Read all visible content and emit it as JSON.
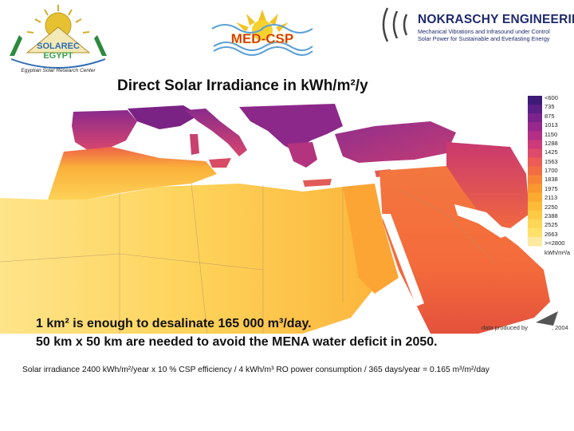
{
  "header": {
    "solarec": {
      "name": "SOLAREC",
      "country": "EGYPT",
      "tagline": "Egyptian Solar Research Center"
    },
    "medcsp": {
      "name": "MED-CSP"
    },
    "nokraschy": {
      "name": "NOKRASCHY ENGINEERING",
      "line1": "Mechanical Vibrations and Infrasound under Control",
      "line2": "Solar Power for Sustainable and Everlasting Energy"
    }
  },
  "map": {
    "title": "Direct Solar Irradiance in kWh/m²/y",
    "credit": "data produced by",
    "credit_year": ", 2004",
    "legend": {
      "labels": [
        "<600",
        "735",
        "875",
        "1013",
        "1150",
        "1288",
        "1425",
        "1563",
        "1700",
        "1838",
        "1975",
        "2113",
        "2250",
        "2388",
        "2525",
        "2663",
        ">=2800"
      ],
      "unit": "kWh/m²/a",
      "colors": [
        "#3d1a78",
        "#5b1f86",
        "#7a238c",
        "#98288b",
        "#b32f86",
        "#cc3a7a",
        "#de4a69",
        "#ea5c55",
        "#f26e42",
        "#f78337",
        "#fa9830",
        "#fbaa30",
        "#fcbb38",
        "#fdca46",
        "#fed658",
        "#fee06b",
        "#fee9a0"
      ]
    }
  },
  "message": {
    "line1": "1 km² is enough to desalinate 165 000 m³/day.",
    "line2": "50 km x 50 km are needed to avoid the MENA water deficit in 2050."
  },
  "footnote": "Solar irradiance 2400 kWh/m²/year x 10 % CSP efficiency / 4 kWh/m³ RO power consumption / 365 days/year = 0.165 m³/m²/day"
}
